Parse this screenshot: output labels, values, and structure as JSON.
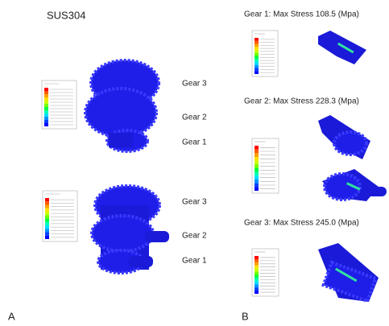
{
  "panel_a": {
    "title": "SUS304",
    "label": "A",
    "views": [
      {
        "labels": [
          "Gear 3",
          "Gear 2",
          "Gear 1"
        ]
      },
      {
        "labels": [
          "Gear 3",
          "Gear 2",
          "Gear 1"
        ]
      }
    ]
  },
  "panel_b": {
    "label": "B",
    "captions": [
      "Gear 1: Max Stress 108.5 (Mpa)",
      "Gear 2: Max Stress 228.3 (Mpa)",
      "Gear 3: Max Stress 245.0 (Mpa)"
    ]
  }
}
